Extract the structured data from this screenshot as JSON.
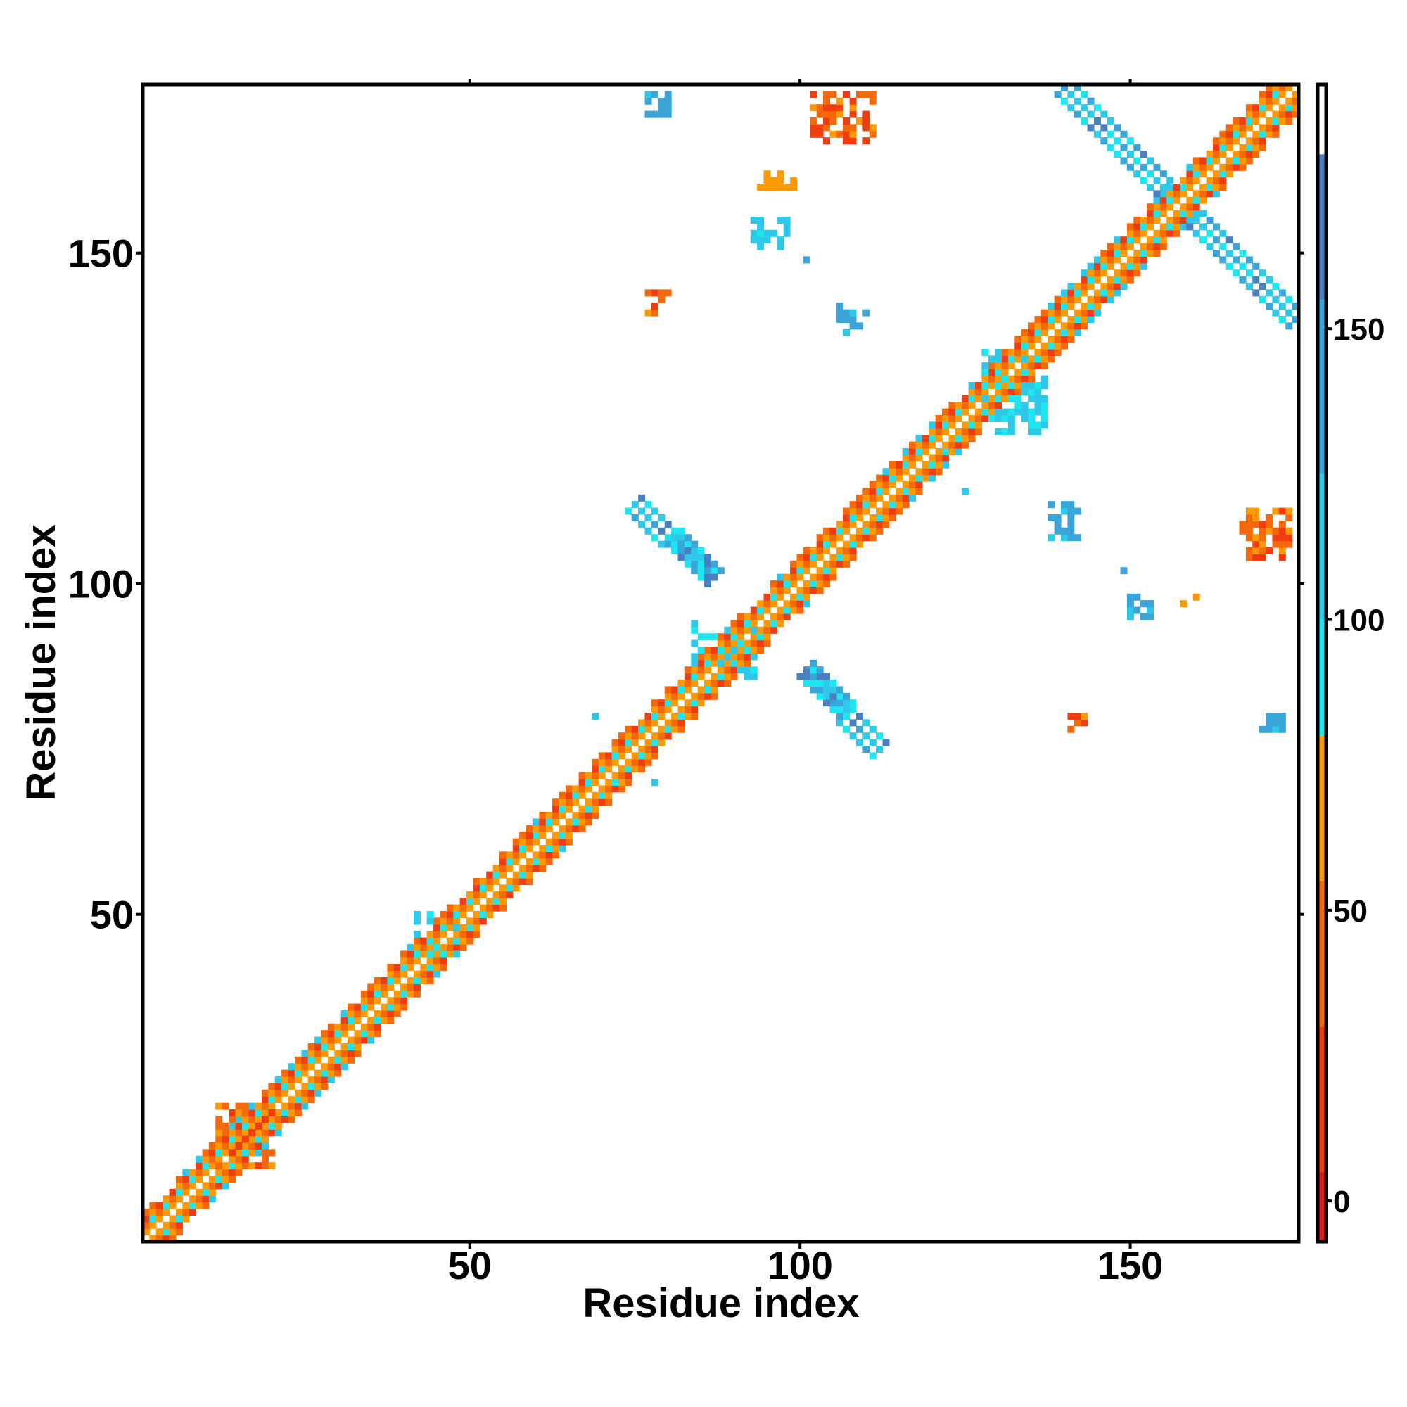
{
  "chart_data": {
    "type": "heatmap",
    "title": "",
    "xlabel": "Residue index",
    "ylabel": "Residue index",
    "xlim": [
      1,
      175
    ],
    "ylim": [
      1,
      175
    ],
    "xticks": [
      50,
      100,
      150
    ],
    "yticks": [
      50,
      100,
      150
    ],
    "x_tick_labels": [
      "50",
      "100",
      "150"
    ],
    "y_tick_labels": [
      "50",
      "100",
      "150"
    ],
    "grid": false,
    "legend": "colorbar-right",
    "colorbar": {
      "range": [
        -7,
        192
      ],
      "ticks": [
        0,
        50,
        100,
        150
      ],
      "tick_labels": [
        "0",
        "50",
        "100",
        "150"
      ],
      "bands": [
        {
          "from": -7,
          "to": 5,
          "color": "#e31a1c"
        },
        {
          "from": 5,
          "to": 30,
          "color": "#f03c0e"
        },
        {
          "from": 30,
          "to": 55,
          "color": "#f46a0a"
        },
        {
          "from": 55,
          "to": 80,
          "color": "#fb9a06"
        },
        {
          "from": 80,
          "to": 100,
          "color": "#1ee6f0"
        },
        {
          "from": 100,
          "to": 125,
          "color": "#2fc8e8"
        },
        {
          "from": 125,
          "to": 155,
          "color": "#3aa5d8"
        },
        {
          "from": 155,
          "to": 180,
          "color": "#4a80bf"
        },
        {
          "from": 180,
          "to": 192,
          "color": "#ffffff"
        }
      ]
    },
    "regions": [
      {
        "kind": "diagonal",
        "from": 1,
        "to": 175
      },
      {
        "kind": "antiparallel_band",
        "a": [
          75,
          112
        ],
        "b": [
          87,
          101
        ],
        "color": "#3aa5d8",
        "halfwidth": 1.4
      },
      {
        "kind": "antiparallel_band",
        "a": [
          140,
          175
        ],
        "b": [
          175,
          140
        ],
        "color": "#3aa5d8",
        "halfwidth": 1.6
      },
      {
        "kind": "blob",
        "x": [
          77,
          80
        ],
        "y": [
          171,
          174
        ],
        "color": "#3aa5d8"
      },
      {
        "kind": "blob",
        "x": [
          102,
          111
        ],
        "y": [
          167,
          174
        ],
        "color": "#f46a0a"
      },
      {
        "kind": "blob",
        "x": [
          94,
          99
        ],
        "y": [
          160,
          162
        ],
        "color": "#fb9a06"
      },
      {
        "kind": "blob",
        "x": [
          93,
          98
        ],
        "y": [
          151,
          155
        ],
        "color": "#2fc8e8"
      },
      {
        "kind": "blob",
        "x": [
          77,
          80
        ],
        "y": [
          141,
          144
        ],
        "color": "#f46a0a"
      },
      {
        "kind": "blob",
        "x": [
          106,
          111
        ],
        "y": [
          138,
          142
        ],
        "color": "#3aa5d8"
      },
      {
        "kind": "blob",
        "x": [
          128,
          137
        ],
        "y": [
          123,
          135
        ],
        "color": "#2fc8e8"
      },
      {
        "kind": "blob",
        "x": [
          138,
          142
        ],
        "y": [
          107,
          112
        ],
        "color": "#3aa5d8"
      },
      {
        "kind": "blob",
        "x": [
          150,
          153
        ],
        "y": [
          95,
          99
        ],
        "color": "#3aa5d8"
      },
      {
        "kind": "blob",
        "x": [
          167,
          174
        ],
        "y": [
          104,
          111
        ],
        "color": "#f46a0a"
      },
      {
        "kind": "blob",
        "x": [
          141,
          143
        ],
        "y": [
          78,
          80
        ],
        "color": "#f46a0a"
      },
      {
        "kind": "blob",
        "x": [
          170,
          173
        ],
        "y": [
          78,
          80
        ],
        "color": "#3aa5d8"
      },
      {
        "kind": "blob",
        "x": [
          84,
          93
        ],
        "y": [
          86,
          94
        ],
        "color": "#2fc8e8"
      },
      {
        "kind": "blob",
        "x": [
          12,
          20
        ],
        "y": [
          12,
          21
        ],
        "color": "#f46a0a"
      },
      {
        "kind": "blob",
        "x": [
          42,
          48
        ],
        "y": [
          44,
          50
        ],
        "color": "#2fc8e8"
      }
    ],
    "isolated_points": [
      {
        "x": 69,
        "y": 80,
        "color": "#2fc8e8"
      },
      {
        "x": 78,
        "y": 70,
        "color": "#2fc8e8"
      },
      {
        "x": 120,
        "y": 122,
        "color": "#2fc8e8"
      },
      {
        "x": 125,
        "y": 114,
        "color": "#2fc8e8"
      },
      {
        "x": 149,
        "y": 102,
        "color": "#3aa5d8"
      },
      {
        "x": 158,
        "y": 97,
        "color": "#fb9a06"
      },
      {
        "x": 160,
        "y": 98,
        "color": "#fb9a06"
      },
      {
        "x": 101,
        "y": 149,
        "color": "#3aa5d8"
      }
    ]
  }
}
